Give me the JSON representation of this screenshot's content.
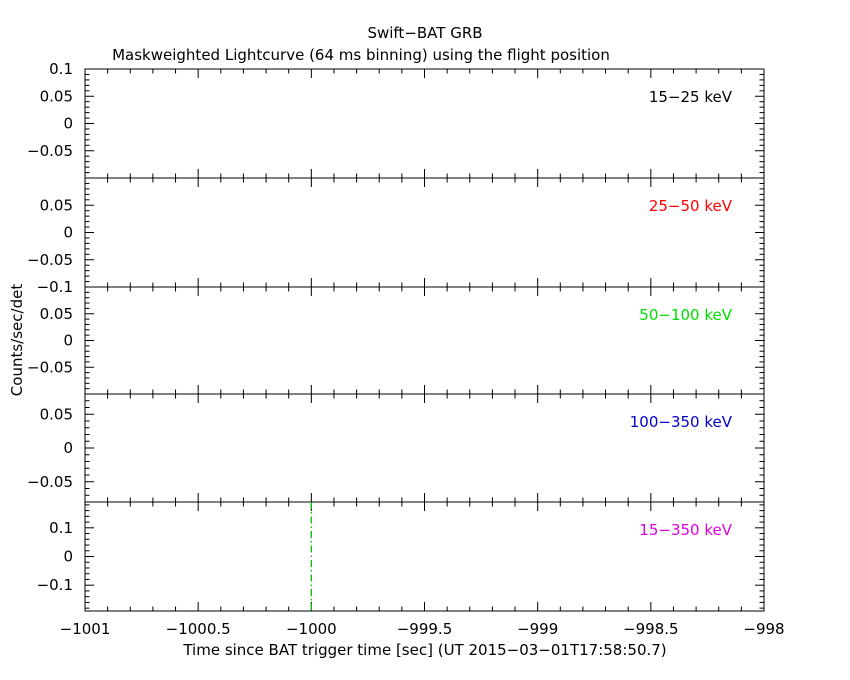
{
  "chart_data": {
    "type": "line",
    "title": "Swift−BAT GRB",
    "subtitle": "Maskweighted Lightcurve (64 ms binning) using the flight position",
    "xlabel": "Time since BAT trigger time [sec] (UT 2015−03−01T17:58:50.7)",
    "ylabel": "Counts/sec/det",
    "xlim": [
      -1001,
      -998
    ],
    "x_ticks": [
      -1001,
      -1000.5,
      -1000,
      -999.5,
      -999,
      -998.5,
      -998
    ],
    "x_tick_labels": [
      "−1001",
      "−1000.5",
      "−1000",
      "−999.5",
      "−999",
      "−998.5",
      "−998"
    ],
    "trigger_line": {
      "x": -1000,
      "color": "#00c000"
    },
    "panels": [
      {
        "name": "15−25 keV",
        "color": "#000000",
        "ylim": [
          -0.1,
          0.1
        ],
        "y_ticks": [
          -0.05,
          0,
          0.05,
          0.1
        ],
        "y_tick_labels": [
          "−0.05",
          "0",
          "0.05",
          "0.1"
        ]
      },
      {
        "name": "25−50 keV",
        "color": "#ff0000",
        "ylim": [
          -0.1,
          0.1
        ],
        "y_ticks": [
          -0.1,
          -0.05,
          0,
          0.05
        ],
        "y_tick_labels": [
          "−0.1",
          "−0.05",
          "0",
          "0.05"
        ]
      },
      {
        "name": "50−100 keV",
        "color": "#00e000",
        "ylim": [
          -0.1,
          0.1
        ],
        "y_ticks": [
          -0.05,
          0,
          0.05
        ],
        "y_tick_labels": [
          "−0.05",
          "0",
          "0.05"
        ]
      },
      {
        "name": "100−350 keV",
        "color": "#0000cc",
        "ylim": [
          -0.08,
          0.08
        ],
        "y_ticks": [
          -0.05,
          0,
          0.05
        ],
        "y_tick_labels": [
          "−0.05",
          "0",
          "0.05"
        ]
      },
      {
        "name": "15−350 keV",
        "color": "#e000e0",
        "ylim": [
          -0.19,
          0.19
        ],
        "y_ticks": [
          -0.1,
          0,
          0.1
        ],
        "y_tick_labels": [
          "−0.1",
          "0",
          "0.1"
        ]
      }
    ]
  }
}
